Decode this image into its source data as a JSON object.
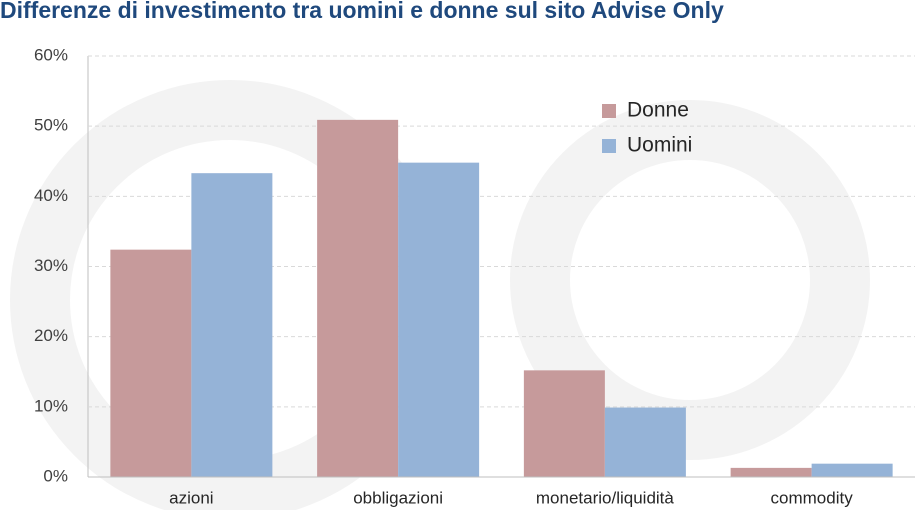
{
  "chart_data": {
    "type": "bar",
    "title": "Differenze di investimento tra uomini e donne sul sito Advise Only",
    "categories": [
      "azioni",
      "obbligazioni",
      "monetario/liquidità",
      "commodity"
    ],
    "series": [
      {
        "name": "Donne",
        "color": "#c69a9b",
        "values": [
          32.4,
          50.9,
          15.2,
          1.3
        ]
      },
      {
        "name": "Uomini",
        "color": "#95b3d7",
        "values": [
          43.3,
          44.8,
          9.9,
          1.9
        ]
      }
    ],
    "ylim": [
      0,
      60
    ],
    "yticks": [
      {
        "value": 0,
        "label": "0%"
      },
      {
        "value": 10,
        "label": "10%"
      },
      {
        "value": 20,
        "label": "20%"
      },
      {
        "value": 30,
        "label": "30%"
      },
      {
        "value": 40,
        "label": "40%"
      },
      {
        "value": 50,
        "label": "50%"
      },
      {
        "value": 60,
        "label": "60%"
      }
    ],
    "grid": true,
    "legend": "upper-right"
  }
}
